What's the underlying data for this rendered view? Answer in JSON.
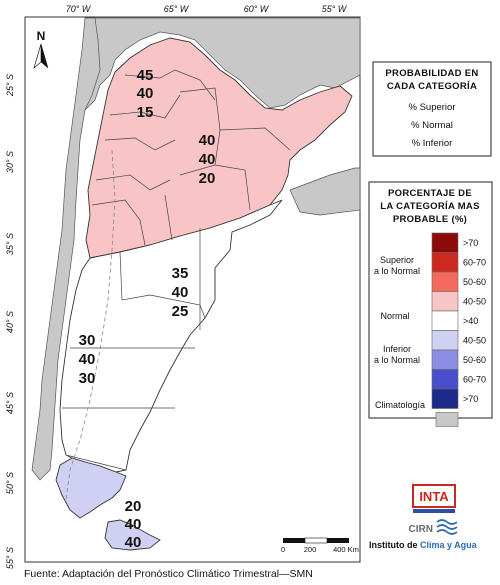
{
  "longitude_labels": [
    "70° W",
    "65° W",
    "60° W",
    "55° W"
  ],
  "latitude_labels": [
    "25° S",
    "30° S",
    "35° S",
    "40° S",
    "45° S",
    "50° S",
    "55° S"
  ],
  "north_arrow": {
    "letter": "N"
  },
  "regions": [
    {
      "id": "noa",
      "values": [
        "45",
        "40",
        "15"
      ],
      "category": "superior"
    },
    {
      "id": "centro",
      "values": [
        "40",
        "40",
        "20"
      ],
      "category": "superior"
    },
    {
      "id": "pampa-sur",
      "values": [
        "35",
        "40",
        "25"
      ],
      "category": "normal"
    },
    {
      "id": "patagonia-norte",
      "values": [
        "30",
        "40",
        "30"
      ],
      "category": "normal"
    },
    {
      "id": "patagonia-sur",
      "values": [
        "20",
        "40",
        "40"
      ],
      "category": "inferior"
    }
  ],
  "prob_box": {
    "title_line1": "PROBABILIDAD EN",
    "title_line2": "CADA CATEGORÍA",
    "items": [
      "% Superior",
      "% Normal",
      "% Inferior"
    ]
  },
  "legend": {
    "title_line1": "PORCENTAJE DE",
    "title_line2": "LA CATEGORÍA MAS",
    "title_line3": "PROBABLE (%)",
    "superior_label_line1": "Superior",
    "superior_label_line2": "a lo Normal",
    "normal_label": "Normal",
    "inferior_label_line1": "Inferior",
    "inferior_label_line2": "a lo Normal",
    "climatologia_label": "Climatología",
    "superior": [
      {
        "label": ">70",
        "color": "#8b0a0a"
      },
      {
        "label": "60-70",
        "color": "#cc2a1e"
      },
      {
        "label": "50-60",
        "color": "#f26a5c"
      },
      {
        "label": "40-50",
        "color": "#f8c4c6"
      }
    ],
    "normal": {
      "label": ">40",
      "color": "#ffffff"
    },
    "inferior": [
      {
        "label": "40-50",
        "color": "#cfd0f4"
      },
      {
        "label": "50-60",
        "color": "#8b8de4"
      },
      {
        "label": "60-70",
        "color": "#4a4ecb"
      },
      {
        "label": ">70",
        "color": "#1c2a8c"
      }
    ],
    "climatologia_color": "#c8c8c8"
  },
  "scale_bar": {
    "labels": [
      "0",
      "200",
      "400 Km"
    ]
  },
  "institution": {
    "logo_text": "INTA",
    "cirn": "CIRN",
    "name_part1": "Instituto de ",
    "name_part2": "Clima y Agua"
  },
  "colors": {
    "superior_fill": "#f8c4c6",
    "inferior_fill": "#cfd0f4",
    "normal_fill": "#ffffff",
    "neighbor_fill": "#c8c8c8",
    "ocean": "#ffffff"
  },
  "source": "Fuente: Adaptación del Pronóstico Climático Trimestral—SMN"
}
